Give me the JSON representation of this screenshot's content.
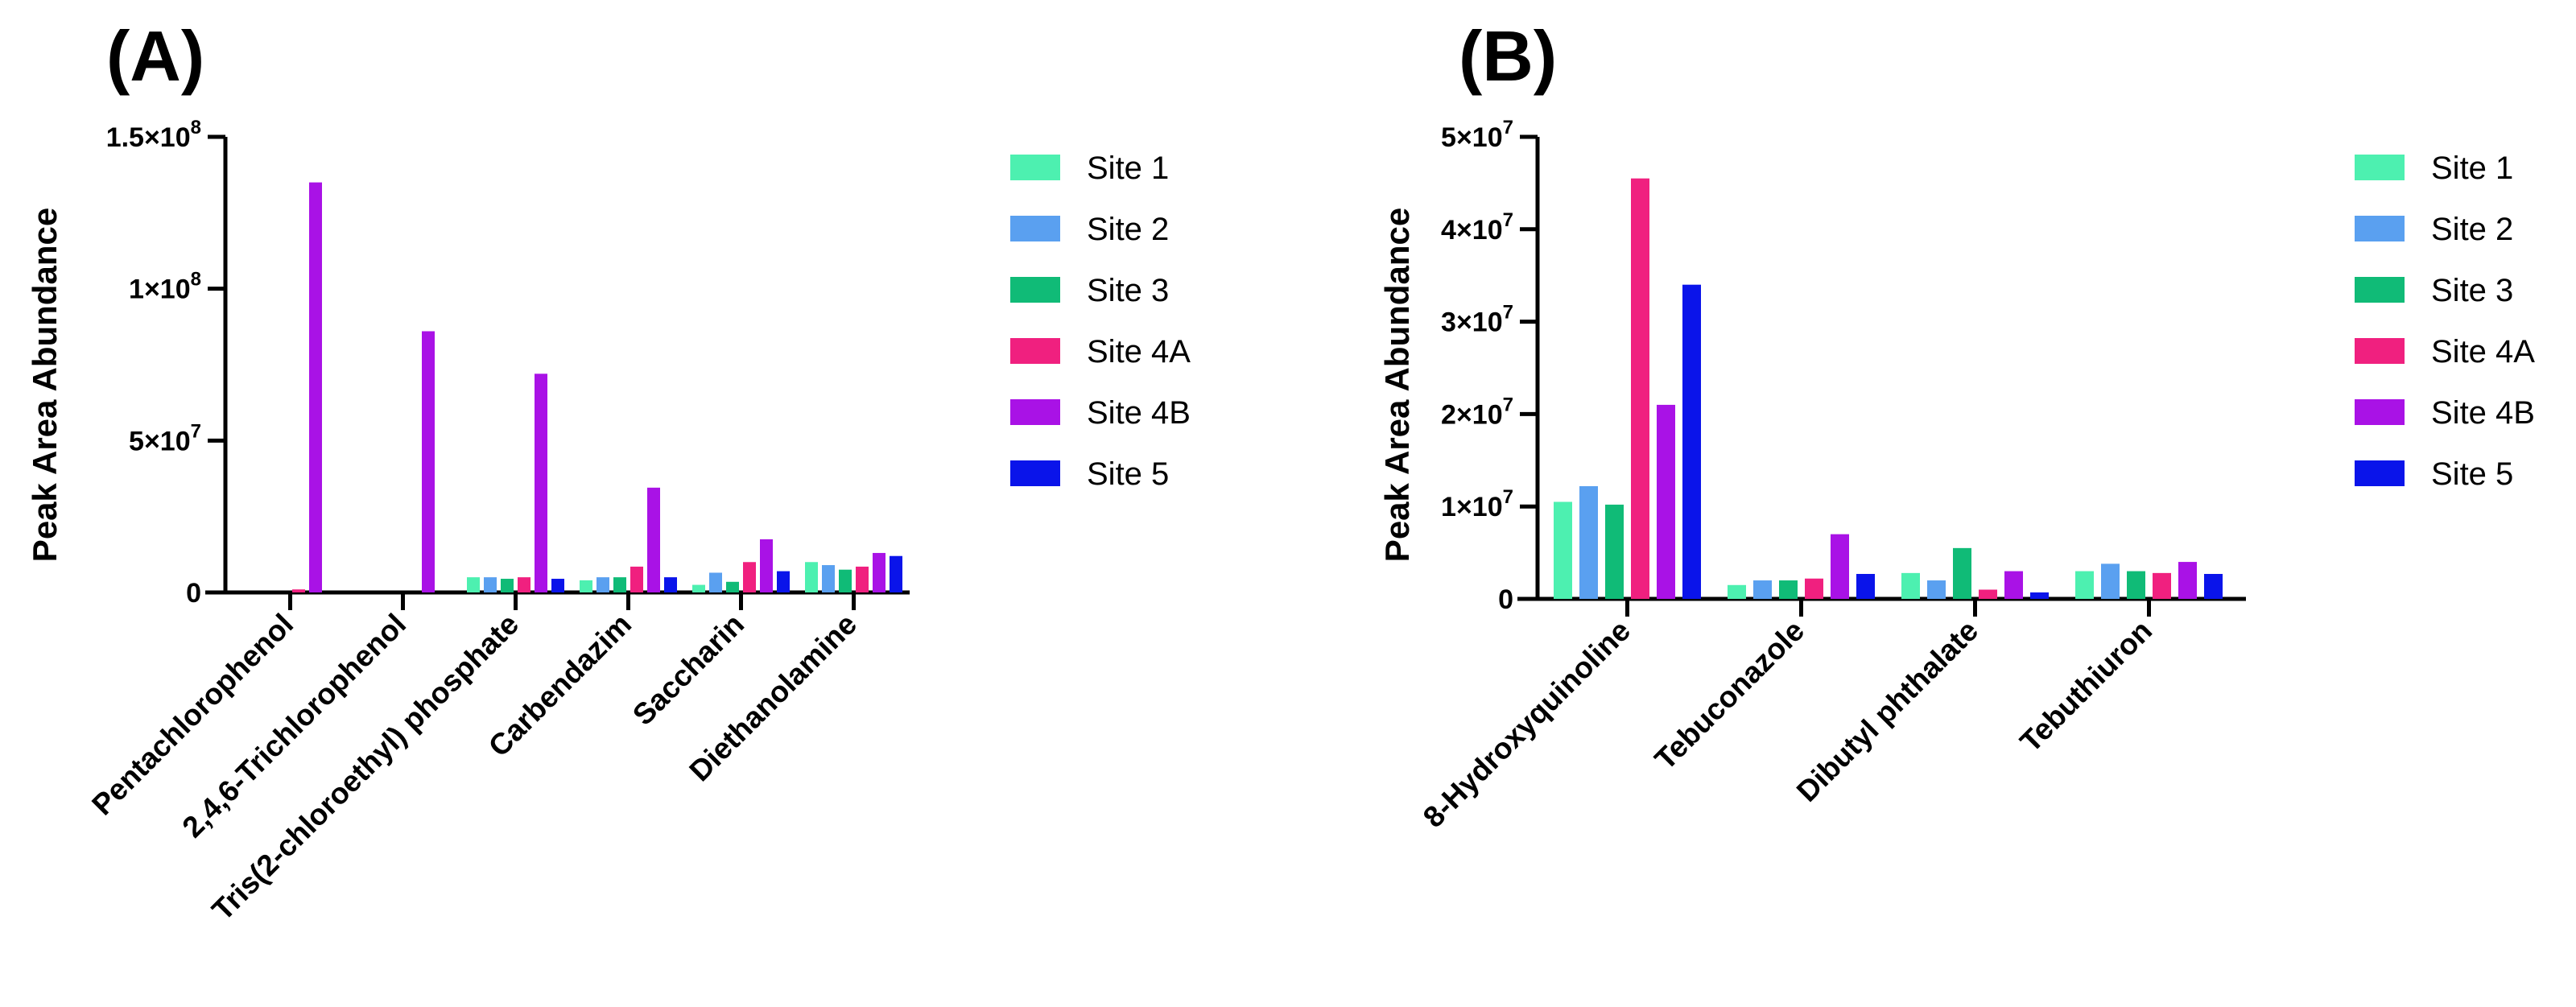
{
  "colors": {
    "Site 1": "#4df0b0",
    "Site 2": "#5aa0f0",
    "Site 3": "#10bb77",
    "Site 4A": "#f0207f",
    "Site 4B": "#a912e6",
    "Site 5": "#0a14ea"
  },
  "chart_data": [
    {
      "type": "bar",
      "panel": "(A)",
      "ylabel": "Peak Area Abundance",
      "ylim": [
        0,
        150000000
      ],
      "yticks": [
        {
          "value": 0,
          "mant": "0",
          "exp": ""
        },
        {
          "value": 50000000,
          "mant": "5×10",
          "exp": "7"
        },
        {
          "value": 100000000,
          "mant": "1×10",
          "exp": "8"
        },
        {
          "value": 150000000,
          "mant": "1.5×10",
          "exp": "8"
        }
      ],
      "categories": [
        "Pentachlorophenol",
        "2,4,6-Trichlorophenol",
        "Tris(2-chloroethyl) phosphate",
        "Carbendazim",
        "Saccharin",
        "Diethanolamine"
      ],
      "series": [
        {
          "name": "Site 1",
          "values": [
            0,
            0,
            5000000,
            4000000,
            2500000,
            10000000
          ]
        },
        {
          "name": "Site 2",
          "values": [
            0,
            0,
            5000000,
            5000000,
            6500000,
            9000000
          ]
        },
        {
          "name": "Site 3",
          "values": [
            0,
            0,
            4500000,
            5000000,
            3500000,
            7500000
          ]
        },
        {
          "name": "Site 4A",
          "values": [
            1000000,
            0,
            5000000,
            8500000,
            10000000,
            8500000
          ]
        },
        {
          "name": "Site 4B",
          "values": [
            135000000,
            86000000,
            72000000,
            34500000,
            17500000,
            13000000
          ]
        },
        {
          "name": "Site 5",
          "values": [
            0,
            0,
            4500000,
            5000000,
            7000000,
            12000000
          ]
        }
      ],
      "legend": [
        "Site 1",
        "Site 2",
        "Site 3",
        "Site 4A",
        "Site 4B",
        "Site 5"
      ]
    },
    {
      "type": "bar",
      "panel": "(B)",
      "ylabel": "Peak Area Abundance",
      "ylim": [
        0,
        50000000
      ],
      "yticks": [
        {
          "value": 0,
          "mant": "0",
          "exp": ""
        },
        {
          "value": 10000000,
          "mant": "1×10",
          "exp": "7"
        },
        {
          "value": 20000000,
          "mant": "2×10",
          "exp": "7"
        },
        {
          "value": 30000000,
          "mant": "3×10",
          "exp": "7"
        },
        {
          "value": 40000000,
          "mant": "4×10",
          "exp": "7"
        },
        {
          "value": 50000000,
          "mant": "5×10",
          "exp": "7"
        }
      ],
      "categories": [
        "8-Hydroxyquinoline",
        "Tebuconazole",
        "Dibutyl phthalate",
        "Tebuthiuron"
      ],
      "series": [
        {
          "name": "Site 1",
          "values": [
            10500000,
            1500000,
            2800000,
            3000000
          ]
        },
        {
          "name": "Site 2",
          "values": [
            12200000,
            2000000,
            2000000,
            3800000
          ]
        },
        {
          "name": "Site 3",
          "values": [
            10200000,
            2000000,
            5500000,
            3000000
          ]
        },
        {
          "name": "Site 4A",
          "values": [
            45500000,
            2200000,
            1000000,
            2800000
          ]
        },
        {
          "name": "Site 4B",
          "values": [
            21000000,
            7000000,
            3000000,
            4000000
          ]
        },
        {
          "name": "Site 5",
          "values": [
            34000000,
            2700000,
            700000,
            2700000
          ]
        }
      ],
      "legend": [
        "Site 1",
        "Site 2",
        "Site 3",
        "Site 4A",
        "Site 4B",
        "Site 5"
      ]
    }
  ]
}
